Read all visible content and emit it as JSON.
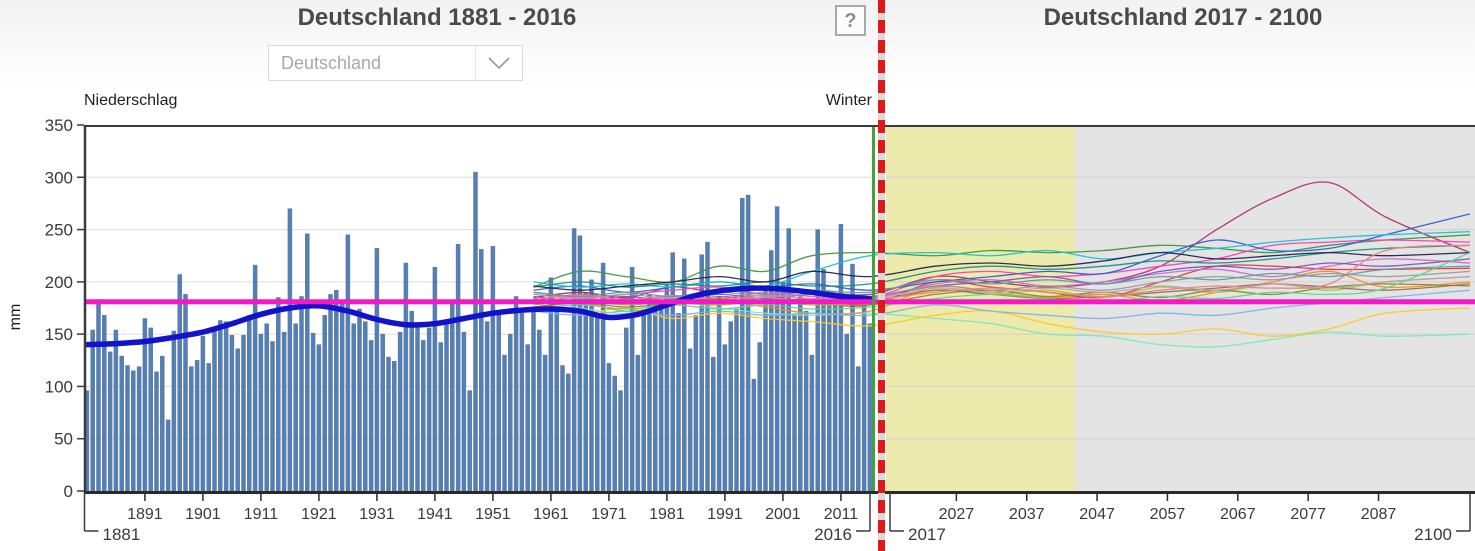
{
  "header": {
    "left_title": "Deutschland 1881 - 2016",
    "right_title": "Deutschland 2017 - 2100",
    "region_selector": {
      "value": "Deutschland"
    },
    "help_button_label": "?"
  },
  "labels": {
    "y_axis_title": "Niederschlag",
    "y_unit": "mm",
    "season": "Winter"
  },
  "colors": {
    "bar": "#4d80bd",
    "bar_edge": "#72757a",
    "trend": "#1212cc",
    "reference": "#f618c8",
    "divider_red": "#e11818",
    "divider_gap": "#d9d9d9",
    "current_year_green": "#44a038",
    "near_future_bg": "#edeaae",
    "far_future_bg": "#e4e4e4",
    "grid_left": "#dcdcdc",
    "grid_right": "#d0d0d0",
    "axis": "#3a3a3a",
    "tick_text": "#3a3a3a",
    "title_text": "#4a4a4a"
  },
  "chart_data": [
    {
      "id": "historical",
      "type": "bar",
      "title": "Deutschland 1881 - 2016",
      "ylabel": "mm",
      "ylim": [
        0,
        350
      ],
      "yticks": [
        0,
        50,
        100,
        150,
        200,
        250,
        300,
        350
      ],
      "xticks": [
        1891,
        1901,
        1911,
        1921,
        1931,
        1941,
        1951,
        1961,
        1971,
        1981,
        1991,
        2001,
        2011
      ],
      "x_range": [
        1881,
        2016
      ],
      "x_end_labels": [
        "1881",
        "2016"
      ],
      "bar_color": "#4d80bd",
      "values": [
        96,
        154,
        183,
        168,
        133,
        154,
        129,
        120,
        115,
        119,
        165,
        156,
        114,
        129,
        68,
        153,
        207,
        188,
        119,
        125,
        148,
        122,
        153,
        163,
        162,
        149,
        136,
        149,
        168,
        216,
        150,
        160,
        143,
        185,
        152,
        270,
        160,
        186,
        246,
        151,
        140,
        168,
        188,
        192,
        180,
        245,
        160,
        174,
        162,
        144,
        232,
        150,
        128,
        124,
        152,
        218,
        172,
        160,
        144,
        156,
        214,
        142,
        160,
        180,
        236,
        152,
        96,
        305,
        231,
        162,
        234,
        172,
        130,
        150,
        186,
        170,
        140,
        176,
        154,
        130,
        204,
        176,
        120,
        112,
        251,
        244,
        190,
        202,
        170,
        218,
        122,
        110,
        96,
        156,
        214,
        130,
        170,
        188,
        180,
        174,
        198,
        228,
        170,
        222,
        136,
        168,
        226,
        238,
        128,
        186,
        140,
        162,
        174,
        280,
        283,
        107,
        142,
        196,
        230,
        272,
        200,
        251,
        168,
        186,
        172,
        130,
        250,
        212,
        184,
        186,
        255,
        150,
        217,
        119,
        178,
        160
      ],
      "trend_line": {
        "color": "#1212cc",
        "years": [
          1881,
          1886,
          1891,
          1896,
          1901,
          1906,
          1911,
          1916,
          1921,
          1926,
          1931,
          1936,
          1941,
          1946,
          1951,
          1956,
          1961,
          1966,
          1971,
          1976,
          1981,
          1986,
          1991,
          1996,
          2001,
          2006,
          2011,
          2016
        ],
        "values": [
          140,
          141,
          143,
          147,
          152,
          160,
          169,
          175,
          177,
          172,
          164,
          159,
          160,
          165,
          170,
          173,
          174,
          172,
          166,
          169,
          178,
          187,
          192,
          194,
          193,
          190,
          186,
          184
        ]
      },
      "reference_line": {
        "value": 181,
        "color": "#f618c8"
      }
    },
    {
      "id": "projection",
      "type": "line",
      "title": "Deutschland 2017 - 2100",
      "ylim": [
        0,
        350
      ],
      "xticks": [
        2027,
        2037,
        2047,
        2057,
        2067,
        2077,
        2087
      ],
      "x_range": [
        2017,
        2100
      ],
      "x_end_labels": [
        "2017",
        "2100"
      ],
      "near_future_range": [
        2017,
        2043
      ],
      "far_future_range": [
        2044,
        2100
      ],
      "reference_line": {
        "value": 181,
        "color": "#f618c8"
      },
      "ensemble_years": [
        1958,
        1966,
        1974,
        1982,
        1990,
        1998,
        2006,
        2016,
        2024,
        2032,
        2040,
        2048,
        2056,
        2064,
        2072,
        2080,
        2088,
        2100
      ],
      "ensemble": [
        {
          "color": "#3a9a35",
          "values": [
            195,
            210,
            205,
            200,
            215,
            210,
            225,
            228,
            225,
            230,
            228,
            230,
            235,
            232,
            228,
            235,
            240,
            245
          ]
        },
        {
          "color": "#7ce8b4",
          "values": [
            185,
            175,
            170,
            180,
            175,
            170,
            168,
            170,
            165,
            160,
            150,
            148,
            140,
            138,
            145,
            152,
            148,
            150
          ]
        },
        {
          "color": "#ffc81e",
          "values": [
            180,
            170,
            175,
            165,
            170,
            165,
            162,
            158,
            168,
            172,
            160,
            152,
            150,
            155,
            148,
            155,
            170,
            175
          ]
        },
        {
          "color": "#ff8a1e",
          "values": [
            175,
            180,
            172,
            178,
            182,
            176,
            170,
            172,
            195,
            190,
            185,
            188,
            182,
            190,
            200,
            210,
            195,
            200
          ]
        },
        {
          "color": "#e23b3b",
          "values": [
            180,
            185,
            178,
            182,
            178,
            185,
            180,
            178,
            200,
            195,
            190,
            185,
            200,
            215,
            215,
            212,
            212,
            213
          ]
        },
        {
          "color": "#b0306a",
          "values": [
            185,
            190,
            185,
            195,
            190,
            195,
            192,
            188,
            205,
            200,
            195,
            200,
            215,
            250,
            280,
            295,
            262,
            228
          ]
        },
        {
          "color": "#ff3dbd",
          "values": [
            190,
            185,
            188,
            192,
            195,
            188,
            190,
            185,
            205,
            210,
            205,
            208,
            215,
            222,
            235,
            238,
            240,
            238
          ]
        },
        {
          "color": "#c86ec8",
          "values": [
            182,
            188,
            182,
            186,
            184,
            190,
            186,
            184,
            198,
            202,
            196,
            200,
            208,
            212,
            205,
            215,
            222,
            218
          ]
        },
        {
          "color": "#7b52c8",
          "values": [
            186,
            182,
            186,
            182,
            188,
            184,
            188,
            186,
            196,
            200,
            205,
            198,
            210,
            215,
            212,
            218,
            215,
            222
          ]
        },
        {
          "color": "#2f5fd0",
          "values": [
            192,
            196,
            190,
            195,
            200,
            195,
            198,
            192,
            200,
            205,
            210,
            208,
            225,
            240,
            230,
            232,
            245,
            265
          ]
        },
        {
          "color": "#7fb2ea",
          "values": [
            172,
            168,
            172,
            168,
            172,
            168,
            170,
            168,
            178,
            172,
            168,
            165,
            170,
            168,
            175,
            180,
            185,
            192
          ]
        },
        {
          "color": "#19c3d4",
          "values": [
            200,
            195,
            198,
            195,
            200,
            196,
            210,
            225,
            228,
            225,
            230,
            222,
            228,
            232,
            238,
            242,
            245,
            248
          ]
        },
        {
          "color": "#1b8f80",
          "values": [
            195,
            200,
            195,
            198,
            196,
            200,
            196,
            198,
            210,
            215,
            212,
            215,
            220,
            218,
            222,
            228,
            232,
            235
          ]
        },
        {
          "color": "#9ccd3a",
          "values": [
            178,
            182,
            178,
            182,
            178,
            182,
            178,
            180,
            192,
            188,
            192,
            185,
            195,
            190,
            198,
            192,
            200,
            205
          ]
        },
        {
          "color": "#8a8a28",
          "values": [
            176,
            180,
            176,
            180,
            184,
            180,
            182,
            178,
            188,
            192,
            186,
            190,
            185,
            192,
            188,
            195,
            198,
            196
          ]
        },
        {
          "color": "#9a7050",
          "values": [
            184,
            180,
            184,
            180,
            186,
            182,
            184,
            182,
            192,
            188,
            184,
            186,
            190,
            194,
            198,
            195,
            192,
            198
          ]
        },
        {
          "color": "#9a9a9a",
          "values": [
            188,
            184,
            188,
            184,
            190,
            186,
            188,
            186,
            196,
            192,
            196,
            192,
            200,
            205,
            202,
            208,
            205,
            210
          ]
        },
        {
          "color": "#23234d",
          "values": [
            196,
            192,
            196,
            200,
            205,
            200,
            210,
            205,
            215,
            218,
            215,
            220,
            228,
            222,
            225,
            228,
            225,
            228
          ]
        },
        {
          "color": "#f08080",
          "values": [
            183,
            187,
            183,
            187,
            183,
            187,
            184,
            183,
            190,
            194,
            190,
            186,
            192,
            196,
            194,
            198,
            230,
            235
          ]
        },
        {
          "color": "#5f9ea0",
          "values": [
            190,
            186,
            190,
            186,
            192,
            188,
            192,
            190,
            202,
            198,
            202,
            198,
            205,
            202,
            208,
            205,
            212,
            215
          ]
        },
        {
          "color": "#57d98a",
          "values": [
            174,
            178,
            174,
            178,
            174,
            178,
            174,
            176,
            184,
            188,
            184,
            180,
            186,
            184,
            190,
            188,
            194,
            228
          ]
        },
        {
          "color": "#c49ab8",
          "values": [
            181,
            185,
            181,
            185,
            181,
            185,
            181,
            183,
            194,
            190,
            194,
            190,
            196,
            192,
            198,
            194,
            200,
            205
          ]
        }
      ]
    }
  ]
}
